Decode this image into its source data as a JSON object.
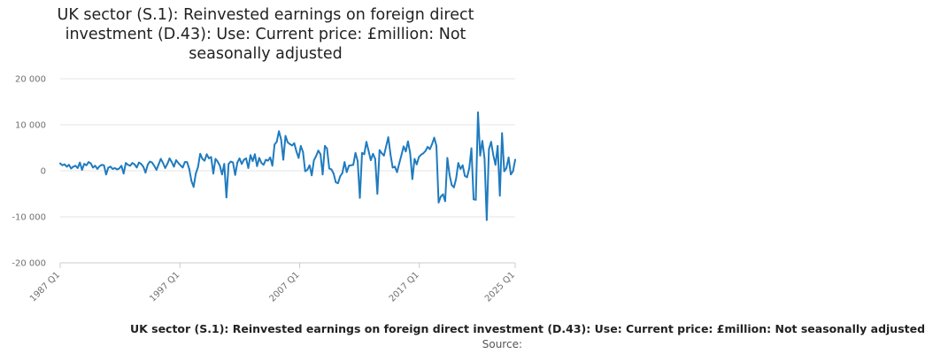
{
  "title_lines": [
    "UK sector (S.1): Reinvested earnings on foreign direct",
    "investment (D.43): Use: Current price: £million: Not",
    "seasonally adjusted"
  ],
  "footer": {
    "caption": "UK sector (S.1): Reinvested earnings on foreign direct investment (D.43): Use: Current price: £million: Not seasonally adjusted",
    "source": "Source:"
  },
  "colors": {
    "series": "#1f7bbf",
    "grid": "#e6e6e6",
    "axis": "#cccccc",
    "tick_text": "#707070"
  },
  "chart_data": {
    "type": "line",
    "title": "UK sector (S.1): Reinvested earnings on foreign direct investment (D.43): Use: Current price: £million: Not seasonally adjusted",
    "xlabel": "",
    "ylabel": "",
    "x_start": "1987 Q1",
    "x_end": "2025 Q1",
    "frequency": "quarterly",
    "x_ticks": [
      "1987 Q1",
      "1997 Q1",
      "2007 Q1",
      "2017 Q1",
      "2025 Q1"
    ],
    "y_ticks": [
      20000,
      10000,
      0,
      -10000,
      -20000
    ],
    "y_tick_labels": [
      "20 000",
      "10 000",
      "0",
      "-10 000",
      "-20 000"
    ],
    "ylim": [
      -20000,
      20000
    ],
    "grid": "horizontal",
    "legend": "none",
    "series": [
      {
        "values": [
          1600,
          1200,
          1400,
          900,
          1300,
          500,
          900,
          1100,
          600,
          1800,
          200,
          1500,
          1200,
          1900,
          1600,
          700,
          1100,
          400,
          1000,
          1300,
          1200,
          -800,
          700,
          900,
          400,
          600,
          300,
          500,
          1100,
          -600,
          1700,
          1300,
          1100,
          1700,
          1400,
          700,
          1800,
          1500,
          900,
          -400,
          1300,
          2000,
          1800,
          1100,
          200,
          1400,
          2600,
          1700,
          600,
          1500,
          2700,
          1900,
          900,
          2300,
          1700,
          1200,
          700,
          1900,
          1900,
          400,
          -2200,
          -3500,
          -600,
          800,
          3700,
          2600,
          2200,
          3600,
          2700,
          3000,
          -600,
          2600,
          2000,
          1100,
          -800,
          1500,
          -5800,
          1500,
          2000,
          1800,
          -900,
          1800,
          2700,
          1500,
          2400,
          2700,
          600,
          3400,
          2100,
          3600,
          1000,
          2800,
          1700,
          1300,
          2400,
          2200,
          2900,
          1100,
          5700,
          6300,
          8600,
          6800,
          2400,
          7600,
          6200,
          5800,
          5500,
          6000,
          4200,
          2800,
          5400,
          4100,
          -100,
          200,
          1200,
          -1000,
          2300,
          3200,
          4400,
          3600,
          -800,
          5400,
          4800,
          500,
          300,
          -600,
          -2500,
          -2700,
          -1200,
          -500,
          1900,
          -300,
          1100,
          1200,
          1300,
          3900,
          2100,
          -5900,
          3900,
          3600,
          6300,
          4300,
          2300,
          3700,
          2600,
          -5000,
          4500,
          3800,
          3300,
          5300,
          7300,
          3600,
          700,
          900,
          -300,
          1600,
          3400,
          5300,
          4200,
          6400,
          3800,
          -1800,
          2600,
          1400,
          3000,
          3500,
          3800,
          4300,
          5200,
          4700,
          5800,
          7200,
          5400,
          -6900,
          -5600,
          -5100,
          -6600,
          2800,
          -900,
          -3100,
          -3600,
          -1700,
          1700,
          400,
          1200,
          -1100,
          -1400,
          500,
          4900,
          -6200,
          -6300,
          12700,
          3300,
          6500,
          2700,
          -10700,
          4700,
          6300,
          3400,
          1300,
          5400,
          -5400,
          8200,
          -100,
          600,
          2900,
          -800,
          -100,
          2400
        ]
      }
    ]
  }
}
